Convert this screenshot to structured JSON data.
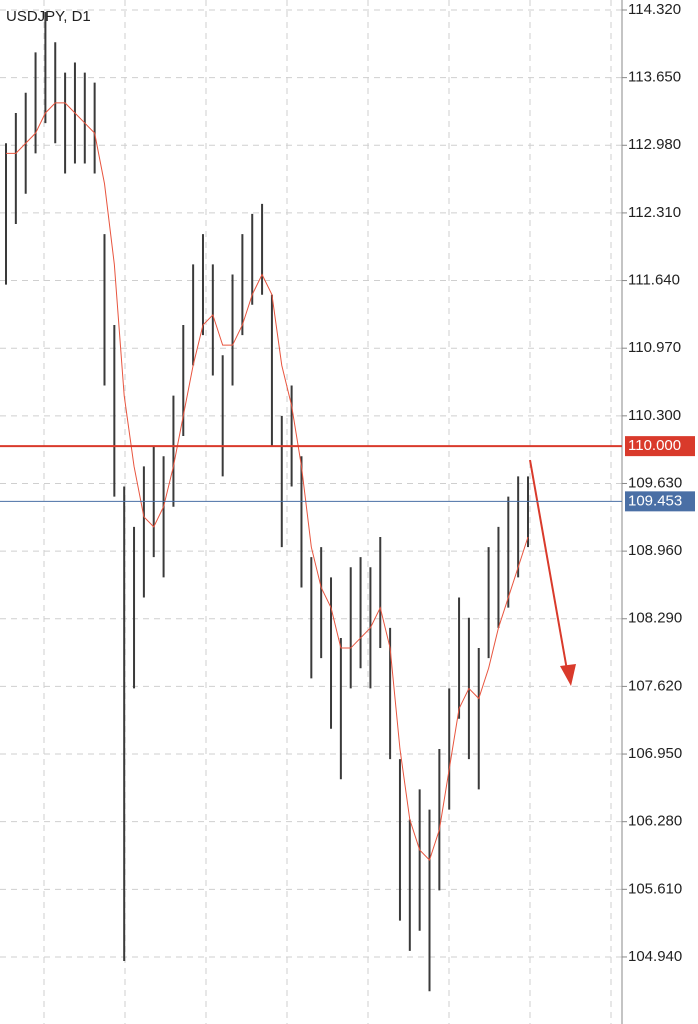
{
  "chart_data": {
    "type": "range_bar",
    "title": "USDJPY, D1",
    "high": [
      113.0,
      113.3,
      113.5,
      113.9,
      114.3,
      114.0,
      113.7,
      113.8,
      113.7,
      113.6,
      112.1,
      111.2,
      109.6,
      109.2,
      109.8,
      110.0,
      109.9,
      110.5,
      111.2,
      111.8,
      112.1,
      111.8,
      110.9,
      111.7,
      112.1,
      112.3,
      112.4,
      111.5,
      110.3,
      110.6,
      109.9,
      108.9,
      109.0,
      108.7,
      108.1,
      108.8,
      108.9,
      108.8,
      109.1,
      108.2,
      106.9,
      106.3,
      106.6,
      106.4,
      107.0,
      107.6,
      108.5,
      108.3,
      108.0,
      109.0,
      109.2,
      109.5,
      109.7,
      109.7
    ],
    "low": [
      111.6,
      112.2,
      112.5,
      112.9,
      113.2,
      113.0,
      112.7,
      112.8,
      112.8,
      112.7,
      110.6,
      109.5,
      104.9,
      107.6,
      108.5,
      108.9,
      108.7,
      109.4,
      110.1,
      110.8,
      111.1,
      110.7,
      109.7,
      110.6,
      111.1,
      111.4,
      111.5,
      110.0,
      109.0,
      109.6,
      108.6,
      107.7,
      107.9,
      107.2,
      106.7,
      107.6,
      107.8,
      107.6,
      108.0,
      106.9,
      105.3,
      105.0,
      105.2,
      104.6,
      105.6,
      106.4,
      107.3,
      106.9,
      106.6,
      107.9,
      108.2,
      108.4,
      108.7,
      109.0
    ],
    "bar_color": "#3a3a3a",
    "moving_average": {
      "color": "#e8553f",
      "values": [
        112.9,
        112.9,
        113.0,
        113.1,
        113.3,
        113.4,
        113.4,
        113.3,
        113.2,
        113.1,
        112.6,
        111.8,
        110.5,
        109.8,
        109.3,
        109.2,
        109.4,
        109.8,
        110.3,
        110.8,
        111.2,
        111.3,
        111.0,
        111.0,
        111.2,
        111.5,
        111.7,
        111.5,
        110.8,
        110.4,
        109.8,
        109.0,
        108.6,
        108.4,
        108.0,
        108.0,
        108.1,
        108.2,
        108.4,
        108.0,
        107.0,
        106.3,
        106.0,
        105.9,
        106.2,
        106.8,
        107.4,
        107.6,
        107.5,
        107.8,
        108.2,
        108.5,
        108.8,
        109.1
      ]
    },
    "levels": [
      {
        "value": 110,
        "label": "110.000",
        "color": "#d93a2b"
      },
      {
        "value": 109.453,
        "label": "109.453",
        "color": "#4a6fa5"
      }
    ],
    "ylim": [
      104.276,
      114.419
    ],
    "yticks": [
      {
        "value": 114.32,
        "label": "114.320"
      },
      {
        "value": 113.65,
        "label": "113.650"
      },
      {
        "value": 112.98,
        "label": "112.980"
      },
      {
        "value": 112.31,
        "label": "112.310"
      },
      {
        "value": 111.64,
        "label": "111.640"
      },
      {
        "value": 110.97,
        "label": "110.970"
      },
      {
        "value": 110.3,
        "label": "110.300"
      },
      {
        "value": 109.63,
        "label": "109.630"
      },
      {
        "value": 108.96,
        "label": "108.960"
      },
      {
        "value": 108.29,
        "label": "108.290"
      },
      {
        "value": 107.62,
        "label": "107.620"
      },
      {
        "value": 106.95,
        "label": "106.950"
      },
      {
        "value": 106.28,
        "label": "106.280"
      },
      {
        "value": 105.61,
        "label": "105.610"
      },
      {
        "value": 104.94,
        "label": "104.940"
      }
    ],
    "grid": true
  }
}
